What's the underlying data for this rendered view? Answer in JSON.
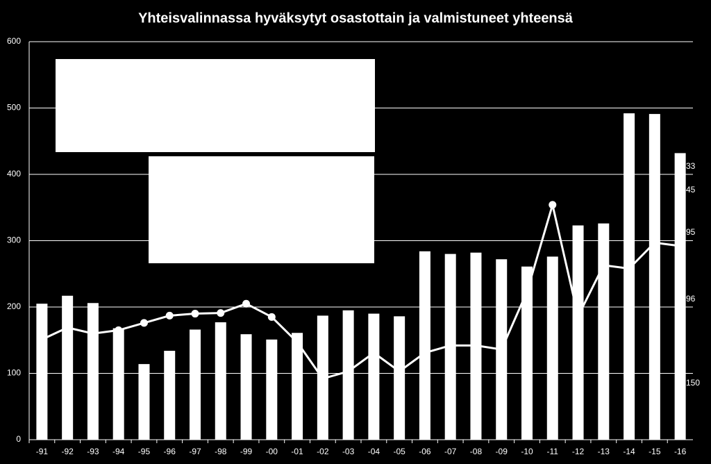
{
  "chart_data": {
    "type": "bar_line",
    "title": "Yhteisvalinnassa hyväksytyt osastottain ja valmistuneet yhteensä",
    "categories": [
      "-91",
      "-92",
      "-93",
      "-94",
      "-95",
      "-96",
      "-97",
      "-98",
      "-99",
      "-00",
      "-01",
      "-02",
      "-03",
      "-04",
      "-05",
      "-06",
      "-07",
      "-08",
      "-09",
      "-10",
      "-11",
      "-12",
      "-13",
      "-14",
      "-15",
      "-16"
    ],
    "series": [
      {
        "type": "bar",
        "color": "#ffffff",
        "values": [
          205,
          217,
          206,
          168,
          114,
          134,
          166,
          177,
          159,
          151,
          161,
          187,
          195,
          190,
          186,
          284,
          280,
          282,
          272,
          261,
          276,
          323,
          326,
          492,
          491,
          432
        ]
      },
      {
        "type": "line",
        "color": "#ffffff",
        "values": [
          151,
          169,
          160,
          165,
          176,
          187,
          190,
          191,
          205,
          185,
          147,
          92,
          103,
          131,
          103,
          131,
          142,
          142,
          136,
          223,
          354,
          186,
          263,
          258,
          297,
          292
        ],
        "markers": [
          false,
          false,
          false,
          true,
          true,
          true,
          true,
          true,
          true,
          true,
          false,
          false,
          false,
          false,
          false,
          false,
          false,
          false,
          false,
          false,
          true,
          false,
          false,
          false,
          false,
          false
        ]
      }
    ],
    "annotations": [
      "33",
      "45",
      "95",
      "96",
      "150"
    ],
    "ylim": [
      0,
      600
    ],
    "yticks": [
      0,
      100,
      200,
      300,
      400,
      500,
      600
    ],
    "grid": true
  }
}
